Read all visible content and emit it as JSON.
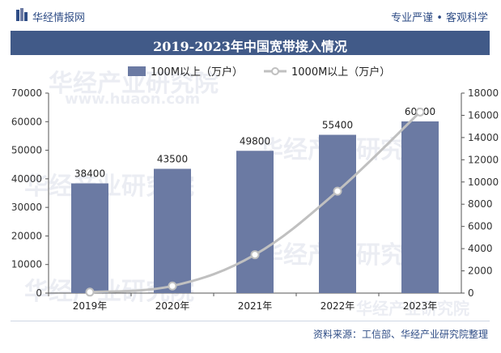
{
  "header": {
    "brand": "华经情报网",
    "slogan": "专业严谨 • 客观科学"
  },
  "watermark": {
    "text_cn": "华经产业研究院",
    "text_url": "www.huaon.com"
  },
  "chart_data": {
    "type": "bar+line",
    "title": "2019-2023年中国宽带接入情况",
    "categories": [
      "2019年",
      "2020年",
      "2021年",
      "2022年",
      "2023年"
    ],
    "series": [
      {
        "name": "100M以上（万户）",
        "type": "bar",
        "axis": "left",
        "values": [
          38400,
          43500,
          49800,
          55400,
          60100
        ],
        "color": "#6b7aa3"
      },
      {
        "name": "1000M以上（万户）",
        "type": "line",
        "axis": "right",
        "values": [
          87,
          640,
          3456,
          9175,
          16300
        ],
        "color": "#c0c0c0"
      }
    ],
    "y_left": {
      "min": 0,
      "max": 70000,
      "ticks": [
        0,
        10000,
        20000,
        30000,
        40000,
        50000,
        60000,
        70000
      ]
    },
    "y_right": {
      "min": 0,
      "max": 18000,
      "ticks": [
        0,
        2000,
        4000,
        6000,
        8000,
        10000,
        12000,
        14000,
        16000,
        18000
      ]
    },
    "legend_position": "top-center",
    "grid": false
  },
  "footer": {
    "source": "资料来源：工信部、华经产业研究院整理"
  }
}
